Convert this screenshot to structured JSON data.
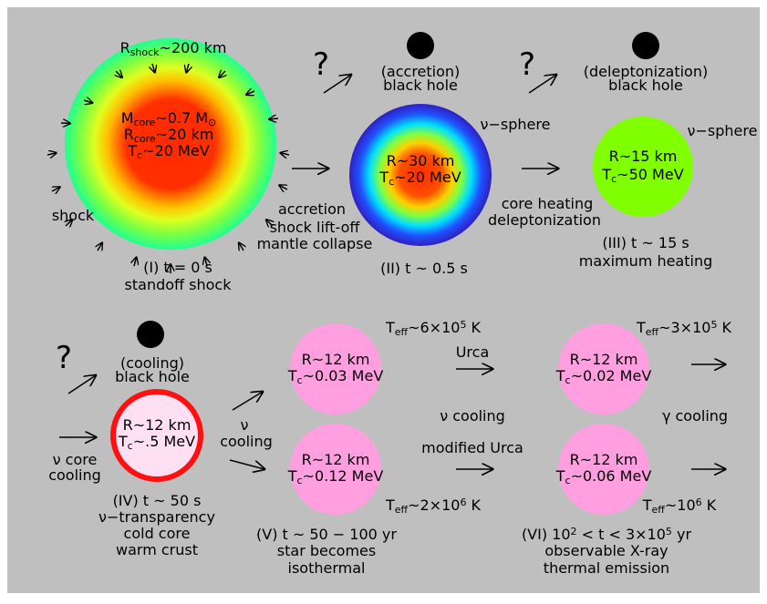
{
  "labels": [
    [
      "R",
      "shock",
      "~200 km"
    ],
    [
      "M",
      "core",
      "~0.7 M",
      "⊙"
    ],
    [
      "R",
      "core",
      "~20 km"
    ],
    [
      "T",
      "c",
      "~20 MeV"
    ],
    [
      "shock"
    ],
    [
      "accretion"
    ],
    [
      "shock lift-off"
    ],
    [
      "mantle collapse"
    ],
    [
      "(I) t = 0 s"
    ],
    [
      "standoff shock"
    ],
    [
      "?"
    ],
    [
      "(accretion)"
    ],
    [
      "black hole"
    ],
    [
      "ν−sphere"
    ],
    [
      "R~30 km"
    ],
    [
      "T",
      "c",
      "~20 MeV"
    ],
    [
      "core heating"
    ],
    [
      "deleptonization"
    ],
    [
      "(II) t ~ 0.5 s"
    ],
    [
      "?"
    ],
    [
      "(deleptonization)"
    ],
    [
      "black hole"
    ],
    [
      "ν−sphere"
    ],
    [
      "R~15 km"
    ],
    [
      "T",
      "c",
      "~50 MeV"
    ],
    [
      "(III) t ~ 15 s"
    ],
    [
      "maximum heating"
    ],
    [
      "?"
    ],
    [
      "(cooling)"
    ],
    [
      "black hole"
    ],
    [
      "ν core"
    ],
    [
      "cooling"
    ],
    [
      "R~12 km"
    ],
    [
      "T",
      "c",
      "~.5 MeV"
    ],
    [
      "ν"
    ],
    [
      "cooling"
    ],
    [
      "(IV) t ~ 50 s"
    ],
    [
      "ν−transparency"
    ],
    [
      "cold core"
    ],
    [
      "warm crust"
    ],
    [
      "T",
      "eff",
      "~6×10",
      "5",
      " K"
    ],
    [
      "R~12 km"
    ],
    [
      "T",
      "c",
      "~0.03 MeV"
    ],
    [
      "R~12 km"
    ],
    [
      "T",
      "c",
      "~0.12 MeV"
    ],
    [
      "T",
      "eff",
      "~2×10",
      "6",
      " K"
    ],
    [
      "(V) t ~ 50 − 100 yr"
    ],
    [
      "star becomes"
    ],
    [
      "isothermal"
    ],
    [
      "Urca"
    ],
    [
      "ν cooling"
    ],
    [
      "modified Urca"
    ],
    [
      "T",
      "eff",
      "~3×10",
      "5",
      " K"
    ],
    [
      "R~12 km"
    ],
    [
      "T",
      "c",
      "~0.02 MeV"
    ],
    [
      "γ cooling"
    ],
    [
      "R~12 km"
    ],
    [
      "T",
      "c",
      "~0.06 MeV"
    ],
    [
      "T",
      "eff",
      "~10",
      "6",
      " K"
    ],
    [
      "(VI) 10",
      "2",
      " < t < 3×10",
      "5",
      " yr"
    ],
    [
      "observable X-ray"
    ],
    [
      "thermal emission"
    ]
  ]
}
